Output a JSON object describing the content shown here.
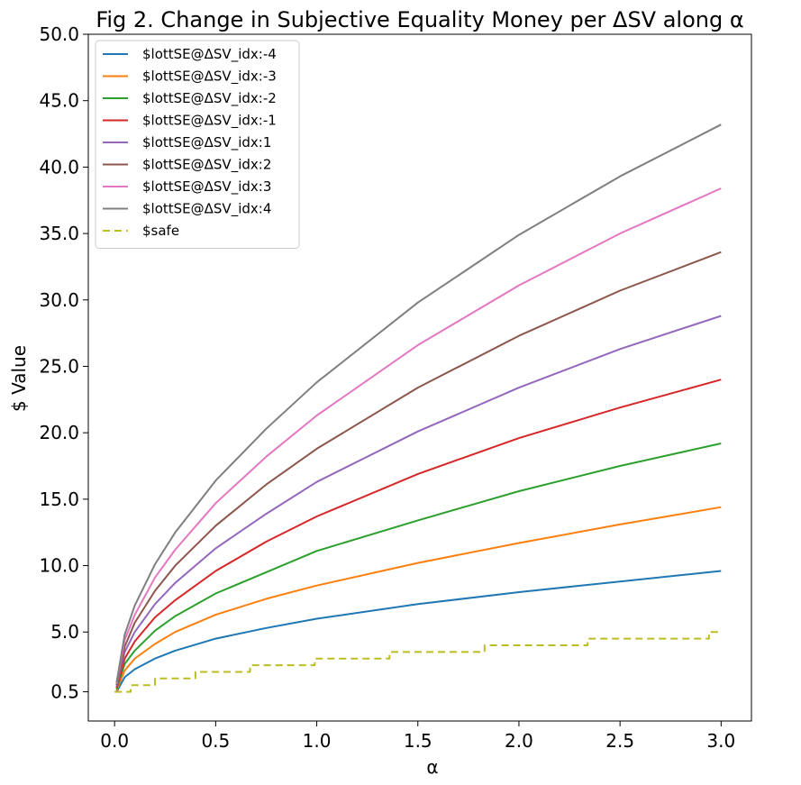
{
  "chart_data": {
    "type": "line",
    "title": "Fig 2. Change in Subjective Equality Money per ΔSV along α",
    "xlabel": "α",
    "ylabel": "$ Value",
    "xlim": [
      -0.13,
      3.15
    ],
    "ylim": [
      -1.7,
      50.0
    ],
    "x_ticks": [
      0.0,
      0.5,
      1.0,
      1.5,
      2.0,
      2.5,
      3.0
    ],
    "x_tick_labels": [
      "0.0",
      "0.5",
      "1.0",
      "1.5",
      "2.0",
      "2.5",
      "3.0"
    ],
    "y_ticks": [
      0.5,
      5.0,
      10.0,
      15.0,
      20.0,
      25.0,
      30.0,
      35.0,
      40.0,
      45.0,
      50.0
    ],
    "y_tick_labels": [
      "0.5",
      "5.0",
      "10.0",
      "15.0",
      "20.0",
      "25.0",
      "30.0",
      "35.0",
      "40.0",
      "45.0",
      "50.0"
    ],
    "grid": false,
    "legend_position": "top-left",
    "series": [
      {
        "name": "$lottSE@ΔSV_idx:-4",
        "color": "#1f77b4",
        "style": "solid",
        "x": [
          0.01,
          0.05,
          0.1,
          0.2,
          0.3,
          0.5,
          0.75,
          1.0,
          1.5,
          2.0,
          2.5,
          3.0
        ],
        "y": [
          0.5,
          1.6,
          2.2,
          3.0,
          3.6,
          4.5,
          5.3,
          6.0,
          7.1,
          8.0,
          8.8,
          9.6
        ]
      },
      {
        "name": "$lottSE@ΔSV_idx:-3",
        "color": "#ff7f0e",
        "style": "solid",
        "x": [
          0.01,
          0.05,
          0.1,
          0.2,
          0.3,
          0.5,
          0.75,
          1.0,
          1.5,
          2.0,
          2.5,
          3.0
        ],
        "y": [
          0.6,
          2.1,
          3.0,
          4.1,
          5.0,
          6.3,
          7.5,
          8.5,
          10.2,
          11.7,
          13.1,
          14.4
        ]
      },
      {
        "name": "$lottSE@ΔSV_idx:-2",
        "color": "#2ca02c",
        "style": "solid",
        "x": [
          0.01,
          0.05,
          0.1,
          0.2,
          0.3,
          0.5,
          0.75,
          1.0,
          1.5,
          2.0,
          2.5,
          3.0
        ],
        "y": [
          0.7,
          2.6,
          3.6,
          5.1,
          6.2,
          7.9,
          9.5,
          11.1,
          13.4,
          15.6,
          17.5,
          19.2
        ]
      },
      {
        "name": "$lottSE@ΔSV_idx:-1",
        "color": "#d62728",
        "style": "solid",
        "x": [
          0.01,
          0.05,
          0.1,
          0.2,
          0.3,
          0.5,
          0.75,
          1.0,
          1.5,
          2.0,
          2.5,
          3.0
        ],
        "y": [
          0.8,
          3.0,
          4.3,
          6.1,
          7.4,
          9.6,
          11.8,
          13.7,
          16.9,
          19.6,
          21.9,
          24.0
        ]
      },
      {
        "name": "$lottSE@ΔSV_idx:1",
        "color": "#9467bd",
        "style": "solid",
        "x": [
          0.01,
          0.05,
          0.1,
          0.2,
          0.3,
          0.5,
          0.75,
          1.0,
          1.5,
          2.0,
          2.5,
          3.0
        ],
        "y": [
          0.9,
          3.5,
          5.0,
          7.1,
          8.7,
          11.3,
          13.9,
          16.3,
          20.1,
          23.4,
          26.3,
          28.8
        ]
      },
      {
        "name": "$lottSE@ΔSV_idx:2",
        "color": "#8c564b",
        "style": "solid",
        "x": [
          0.01,
          0.05,
          0.1,
          0.2,
          0.3,
          0.5,
          0.75,
          1.0,
          1.5,
          2.0,
          2.5,
          3.0
        ],
        "y": [
          1.0,
          3.9,
          5.7,
          8.1,
          10.0,
          13.0,
          16.1,
          18.8,
          23.4,
          27.3,
          30.7,
          33.6
        ]
      },
      {
        "name": "$lottSE@ΔSV_idx:3",
        "color": "#e377c2",
        "style": "solid",
        "x": [
          0.01,
          0.05,
          0.1,
          0.2,
          0.3,
          0.5,
          0.75,
          1.0,
          1.5,
          2.0,
          2.5,
          3.0
        ],
        "y": [
          1.1,
          4.4,
          6.3,
          9.1,
          11.2,
          14.7,
          18.2,
          21.3,
          26.6,
          31.1,
          35.0,
          38.4
        ]
      },
      {
        "name": "$lottSE@ΔSV_idx:4",
        "color": "#7f7f7f",
        "style": "solid",
        "x": [
          0.01,
          0.05,
          0.1,
          0.2,
          0.3,
          0.5,
          0.75,
          1.0,
          1.5,
          2.0,
          2.5,
          3.0
        ],
        "y": [
          1.2,
          4.8,
          7.0,
          10.1,
          12.5,
          16.4,
          20.3,
          23.8,
          29.8,
          34.9,
          39.3,
          43.2
        ]
      },
      {
        "name": "$safe",
        "color": "#bcbd22",
        "style": "dashed",
        "step": true,
        "x": [
          0.0,
          0.08,
          0.08,
          0.2,
          0.2,
          0.4,
          0.4,
          0.67,
          0.67,
          0.99,
          0.99,
          1.36,
          1.36,
          1.83,
          1.83,
          2.34,
          2.34,
          2.94,
          2.94,
          3.0
        ],
        "y": [
          0.5,
          0.5,
          1.0,
          1.0,
          1.5,
          1.5,
          2.0,
          2.0,
          2.5,
          2.5,
          3.0,
          3.0,
          3.5,
          3.5,
          4.0,
          4.0,
          4.5,
          4.5,
          5.0,
          5.0
        ]
      }
    ]
  }
}
